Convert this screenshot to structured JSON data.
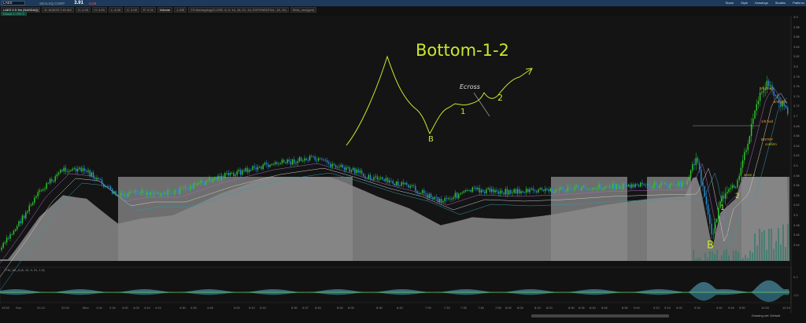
{
  "toolbar": {
    "symbol": "LAES",
    "company": "SEALSQ CORP",
    "price": "3.91",
    "change": "-0.09",
    "buttons": [
      "Share",
      "Style",
      "Drawings",
      "Studies",
      "Patterns"
    ]
  },
  "header": {
    "chart": "LAES 5 D 5m [NASDAQ]",
    "date": "D: 8/18/25 7:40 AM",
    "open": "O: 4.08",
    "high": "H: 4.09",
    "low": "L: 4.08",
    "close": "C: 4.08",
    "range": "R: 0.01",
    "volume_label": "Volume",
    "volume": "1,328",
    "study1": "TH.MovingAvg(CLOSE, 8, 9, 14, 18, 21, 34, EXPONENTIAL, 18, 10)",
    "study2": "EMA_new(gen)",
    "badge": "Draws 1 / RV 2"
  },
  "price_axis": [
    "3.9",
    "3.88",
    "3.86",
    "3.84",
    "3.82",
    "3.8",
    "3.78",
    "3.76",
    "3.74",
    "3.72",
    "3.7",
    "3.68",
    "3.66",
    "3.64",
    "3.62",
    "3.6",
    "3.58",
    "3.56",
    "3.54",
    "3.52",
    "3.5",
    "3.48",
    "3.46",
    "3.44"
  ],
  "time_axis": [
    "19:52",
    "Sun",
    "21:12",
    "22:02",
    "Mon",
    "1:04",
    "2:16",
    "4:00",
    "4:05",
    "4:10",
    "4:15",
    "4:30",
    "4:35",
    "4:45",
    "5:00",
    "5:10",
    "5:15",
    "5:30",
    "5:37",
    "5:45",
    "6:00",
    "6:05",
    "6:30",
    "6:40",
    "7:00",
    "7:15",
    "7:35",
    "7:45",
    "7:55",
    "8:00",
    "8:05",
    "8:15",
    "8:20",
    "8:30",
    "8:35",
    "8:40",
    "8:45",
    "8:55",
    "9:00",
    "9:10",
    "9:15",
    "9:20",
    "9:30",
    "9:40",
    "9:45",
    "9:50",
    "10:00",
    "10:10"
  ],
  "annotations": {
    "title": "Bottom-1-2",
    "b1": "B",
    "one1": "1",
    "two1": "2",
    "ecross": "Ecross",
    "b2": "B",
    "one2": "1",
    "two2": "2"
  },
  "orders": [
    "3/8 trend",
    "4/4 parb",
    "1/8 hod",
    "ENTRY",
    "confirm",
    "wave 1"
  ],
  "lower_study": {
    "label": "TTM_Wt_A (8, 13, 0, 21, 1.0)",
    "axis": [
      "0.1",
      "-0.1"
    ]
  },
  "status": {
    "drawing_set": "Drawing set: Default"
  },
  "colors": {
    "up": "#2ecc2e",
    "down": "#2a8fd6",
    "annotation": "#c6e82b",
    "ma_fill": "#8a8a8a"
  }
}
